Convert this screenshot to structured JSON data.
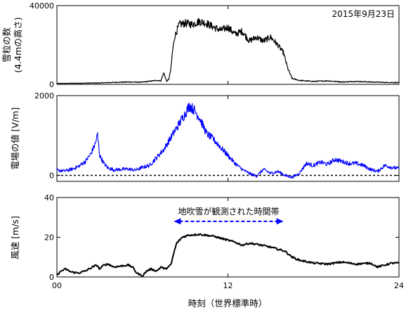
{
  "chart_data": [
    {
      "type": "line",
      "panel": "snow",
      "ylabel_line1": "雪粒の数",
      "ylabel_line2": "(4.4mの高さ)",
      "ylim": [
        0,
        40000
      ],
      "yticks": [
        0,
        40000
      ],
      "xlim": [
        0,
        24
      ],
      "date_label": "2015年9月23日",
      "grid": false,
      "series": [
        {
          "color": "#000000",
          "x": [
            0,
            1,
            2,
            3,
            4,
            5,
            6,
            6.5,
            7,
            7.3,
            7.5,
            7.7,
            7.85,
            8.0,
            8.1,
            8.25,
            8.4,
            8.6,
            9,
            9.5,
            10,
            10.5,
            11,
            11.5,
            12,
            12.5,
            13,
            13.5,
            14,
            14.5,
            15,
            15.5,
            15.9,
            16.2,
            16.5,
            17,
            18,
            19,
            20,
            21,
            22,
            23,
            24
          ],
          "y": [
            400,
            500,
            600,
            700,
            1000,
            1200,
            1100,
            1600,
            2000,
            1800,
            6000,
            1500,
            2500,
            8000,
            16000,
            24000,
            27000,
            30500,
            31000,
            30500,
            32000,
            31000,
            29000,
            27500,
            29000,
            25500,
            27000,
            22000,
            24000,
            22000,
            24000,
            20000,
            16000,
            8000,
            3000,
            2000,
            1500,
            1800,
            1200,
            1500,
            1200,
            1000,
            900
          ]
        }
      ]
    },
    {
      "type": "line",
      "panel": "efield",
      "ylabel": "電場の値 [V/m]",
      "ylim": [
        -150,
        2000
      ],
      "yticks": [
        0,
        2000
      ],
      "xlim": [
        0,
        24
      ],
      "reference_line": 0,
      "grid": false,
      "series": [
        {
          "color": "#0000ff",
          "x": [
            0,
            0.5,
            1,
            1.5,
            2,
            2.4,
            2.7,
            2.85,
            3.0,
            3.3,
            3.6,
            4,
            4.5,
            5,
            5.5,
            6,
            6.5,
            7,
            7.5,
            8,
            8.5,
            9,
            9.3,
            9.6,
            10,
            10.5,
            11,
            11.5,
            12,
            12.5,
            13,
            13.5,
            14,
            14.5,
            15,
            15.5,
            16,
            16.5,
            17,
            17.5,
            18,
            18.5,
            19,
            19.5,
            20,
            20.5,
            21,
            21.5,
            22,
            22.5,
            23,
            23.5,
            24
          ],
          "y": [
            130,
            110,
            150,
            220,
            350,
            550,
            800,
            1030,
            500,
            300,
            180,
            140,
            150,
            160,
            130,
            200,
            250,
            450,
            650,
            950,
            1250,
            1550,
            1750,
            1650,
            1450,
            1050,
            900,
            700,
            500,
            300,
            150,
            50,
            -20,
            150,
            50,
            100,
            0,
            -50,
            50,
            300,
            250,
            330,
            280,
            400,
            350,
            300,
            300,
            250,
            150,
            100,
            250,
            200,
            170
          ]
        }
      ]
    },
    {
      "type": "line",
      "panel": "wind",
      "ylabel": "風速 [m/s]",
      "xlabel": "時刻（世界標準時）",
      "ylim": [
        0,
        40
      ],
      "yticks": [
        0,
        20,
        40
      ],
      "xlim": [
        0,
        24
      ],
      "xticks": [
        0,
        12,
        24
      ],
      "xtick_labels": [
        "00",
        "12",
        "24"
      ],
      "annotation": {
        "text": "地吹雪が観測された時間帯",
        "x_start": 8.2,
        "x_end": 15.9,
        "y": 28,
        "color": "#0000ff",
        "style": "dashed double arrow"
      },
      "grid": false,
      "series": [
        {
          "color": "#000000",
          "x": [
            0,
            0.3,
            0.6,
            1.0,
            1.5,
            2.0,
            2.5,
            2.8,
            3.0,
            3.3,
            3.6,
            4.0,
            4.5,
            5.0,
            5.3,
            5.6,
            6.0,
            6.3,
            6.6,
            7.0,
            7.3,
            7.6,
            8.0,
            8.2,
            8.4,
            8.8,
            9.2,
            10.0,
            11.0,
            12.0,
            12.5,
            13.0,
            13.5,
            14.0,
            15.0,
            15.5,
            16.0,
            16.5,
            17.0,
            18.0,
            19.0,
            20.0,
            21.0,
            22.0,
            22.5,
            23.0,
            23.5,
            24.0
          ],
          "y": [
            1,
            3,
            4,
            2.5,
            2,
            3,
            5,
            6,
            4,
            6,
            6.5,
            5,
            5.5,
            6,
            5,
            2,
            0.5,
            3,
            4,
            3,
            5,
            4,
            6,
            12,
            17,
            20,
            21,
            21.5,
            20.5,
            18.5,
            17.5,
            16,
            17,
            16.5,
            15,
            14,
            13,
            10,
            8.5,
            7,
            6.5,
            7.5,
            6.5,
            7,
            5,
            6,
            7,
            7
          ]
        }
      ]
    }
  ]
}
